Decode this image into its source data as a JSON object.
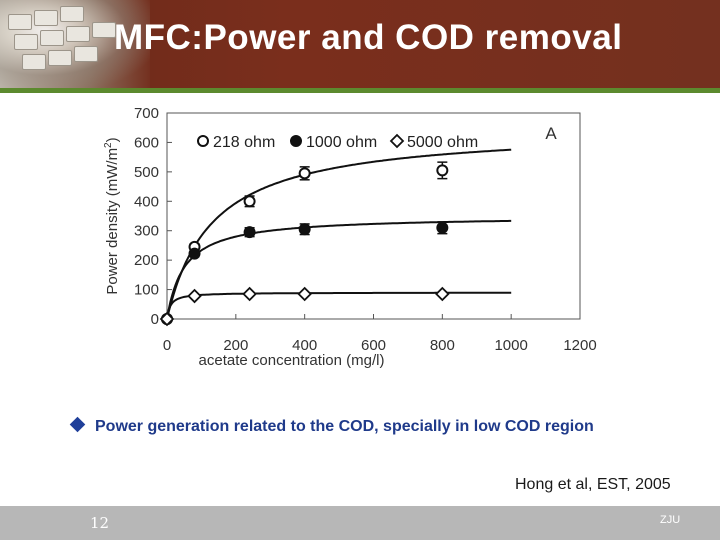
{
  "slide": {
    "title": "MFC:Power and COD removal",
    "bullet": "Power  generation related to the  COD, specially in  low COD region",
    "citation": "Hong et al, EST, 2005",
    "page_number": "12",
    "footer_org": "ZJU"
  },
  "colors": {
    "header_bg": "#74301f",
    "accent_rule": "#5c8a2e",
    "bullet": "#1f3a8a",
    "footer_bg": "#b7b7b7"
  },
  "chart_data": {
    "type": "scatter",
    "panel_label": "A",
    "xlabel": "acetate concentration (mg/l)",
    "ylabel": "Power density (mW/m",
    "ylabel_sup": "2",
    "ylabel_tail": ")",
    "xlim": [
      0,
      1200
    ],
    "ylim": [
      0,
      700
    ],
    "x_ticks": [
      0,
      200,
      400,
      600,
      800,
      1000,
      1200
    ],
    "y_ticks": [
      0,
      100,
      200,
      300,
      400,
      500,
      600,
      700
    ],
    "legend_position": "top",
    "series": [
      {
        "name": "218 ohm",
        "marker": "open-circle",
        "x": [
          0,
          80,
          240,
          400,
          800
        ],
        "y": [
          0,
          245,
          400,
          495,
          505
        ],
        "err": [
          0,
          10,
          18,
          22,
          28
        ],
        "fit": {
          "vmax": 650,
          "k": 130
        }
      },
      {
        "name": "1000 ohm",
        "marker": "filled-circle",
        "x": [
          0,
          80,
          240,
          400,
          800
        ],
        "y": [
          0,
          222,
          295,
          305,
          310
        ],
        "err": [
          0,
          10,
          15,
          18,
          20
        ],
        "fit": {
          "vmax": 350,
          "k": 50
        }
      },
      {
        "name": "5000 ohm",
        "marker": "open-diamond",
        "x": [
          0,
          80,
          240,
          400,
          800
        ],
        "y": [
          0,
          78,
          85,
          85,
          85
        ],
        "err": [
          0,
          3,
          3,
          3,
          3
        ],
        "fit": {
          "vmax": 90,
          "k": 10
        }
      }
    ]
  }
}
